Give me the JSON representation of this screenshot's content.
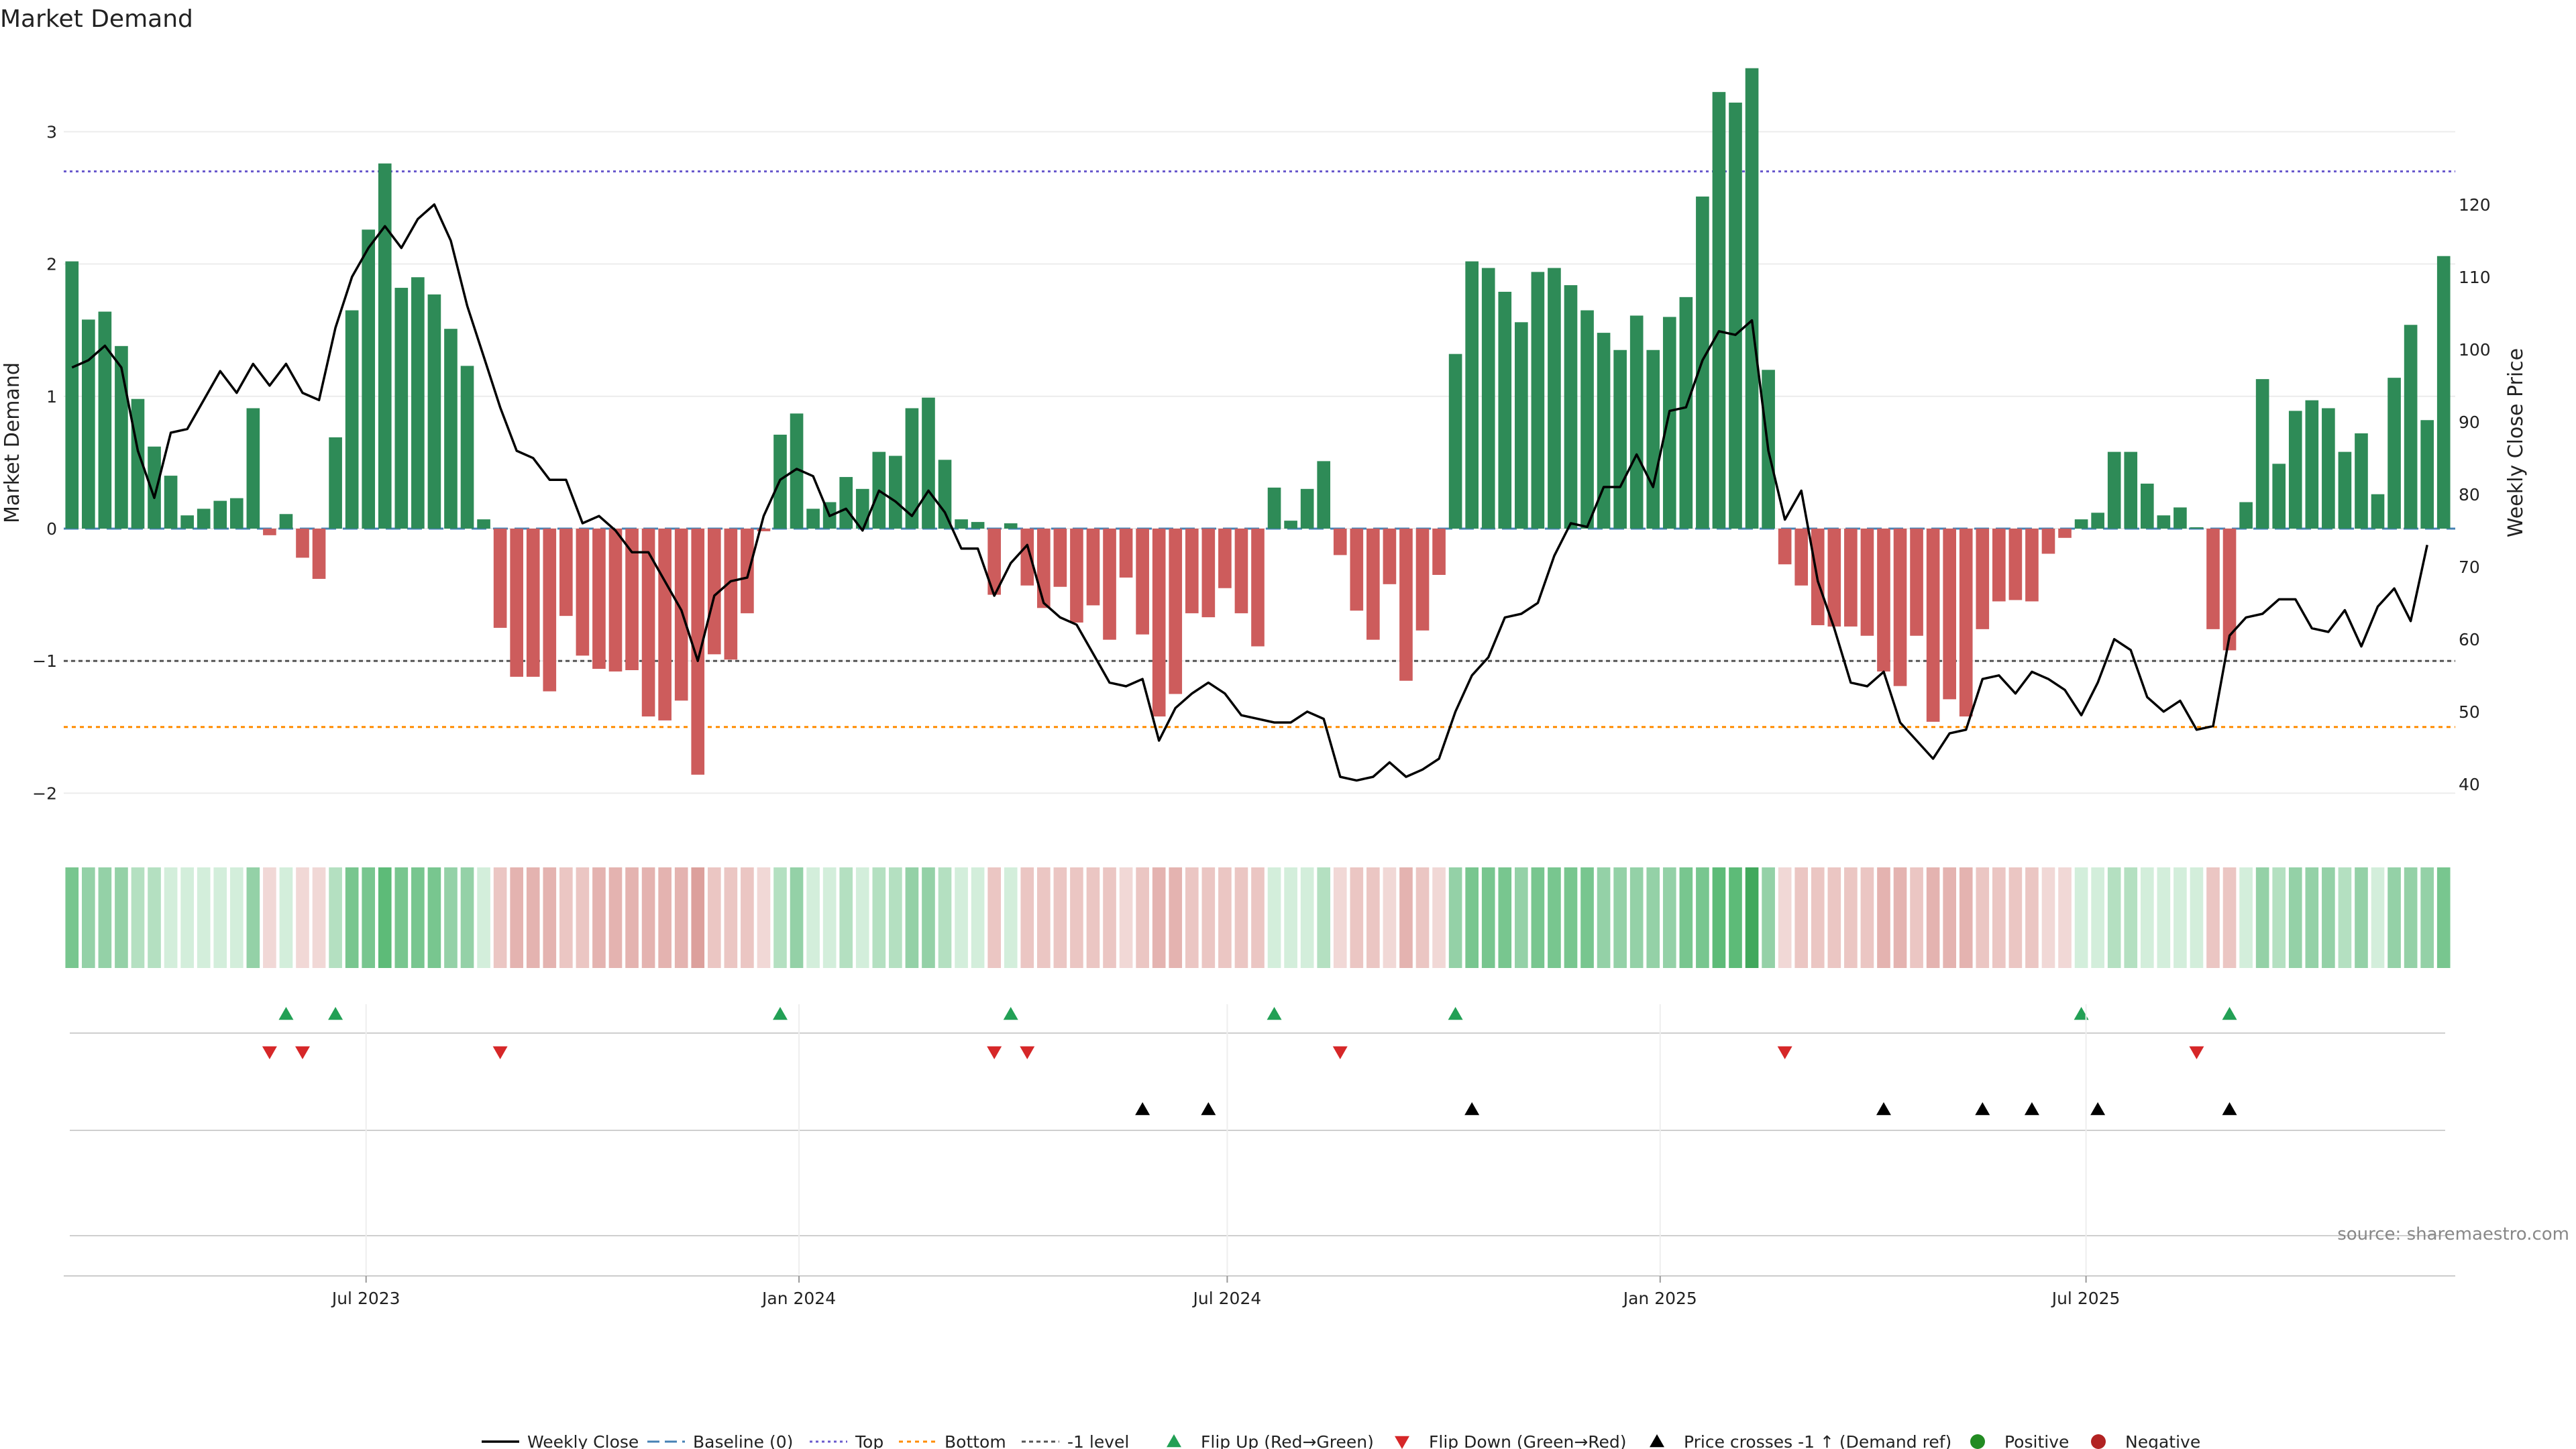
{
  "colors": {
    "positive": "#2e8b57",
    "negative": "#cd5c5c",
    "price_line": "#000000",
    "top_line": "#6a5acd",
    "bottom_line": "#ff8c00",
    "minus1_line": "#555555",
    "baseline": "#4682b4",
    "flip_up": "#22a055",
    "flip_down": "#d62728",
    "cross": "#000000",
    "positive_dot": "#228b22",
    "negative_dot": "#b22222"
  },
  "chart_data": {
    "type": "bar",
    "title": "Market Demand",
    "ylabel": "Market Demand",
    "y2label": "Weekly Close Price",
    "ylim": [
      -2.15,
      3.6
    ],
    "y2lim": [
      36,
      141
    ],
    "yticks": [
      -2,
      -1,
      0,
      1,
      2,
      3
    ],
    "y2ticks": [
      40,
      50,
      60,
      70,
      80,
      90,
      100,
      110,
      120
    ],
    "ytick_labels": [
      "−2",
      "−1",
      "0",
      "1",
      "2",
      "3"
    ],
    "y2tick_labels": [
      "40",
      "50",
      "60",
      "70",
      "80",
      "90",
      "100",
      "110",
      "120"
    ],
    "x_start": "2023-02-26",
    "bar_interval_days": 7,
    "xticks": [
      {
        "label": "Jul 2023",
        "date": "2023-07-01"
      },
      {
        "label": "Jan 2024",
        "date": "2024-01-01"
      },
      {
        "label": "Jul 2024",
        "date": "2024-07-01"
      },
      {
        "label": "Jan 2025",
        "date": "2025-01-01"
      },
      {
        "label": "Jul 2025",
        "date": "2025-07-01"
      }
    ],
    "levels": {
      "top": 2.7,
      "bottom": -1.5,
      "minus_one": -1.0,
      "baseline": 0
    },
    "demand": [
      2.02,
      1.58,
      1.64,
      1.38,
      0.98,
      0.62,
      0.4,
      0.1,
      0.15,
      0.21,
      0.23,
      0.91,
      -0.05,
      0.11,
      -0.22,
      -0.38,
      0.69,
      1.65,
      2.26,
      2.76,
      1.82,
      1.9,
      1.77,
      1.51,
      1.23,
      0.07,
      -0.75,
      -1.12,
      -1.12,
      -1.23,
      -0.66,
      -0.96,
      -1.06,
      -1.08,
      -1.07,
      -1.42,
      -1.45,
      -1.3,
      -1.86,
      -0.95,
      -0.99,
      -0.64,
      -0.02,
      0.71,
      0.87,
      0.15,
      0.2,
      0.39,
      0.3,
      0.58,
      0.55,
      0.91,
      0.99,
      0.52,
      0.07,
      0.05,
      -0.5,
      0.04,
      -0.43,
      -0.6,
      -0.44,
      -0.71,
      -0.58,
      -0.84,
      -0.37,
      -0.8,
      -1.42,
      -1.25,
      -0.64,
      -0.67,
      -0.45,
      -0.64,
      -0.89,
      0.31,
      0.06,
      0.3,
      0.51,
      -0.2,
      -0.62,
      -0.84,
      -0.42,
      -1.15,
      -0.77,
      -0.35,
      1.32,
      2.02,
      1.97,
      1.79,
      1.56,
      1.94,
      1.97,
      1.84,
      1.65,
      1.48,
      1.35,
      1.61,
      1.35,
      1.6,
      1.75,
      2.51,
      3.3,
      3.22,
      3.48,
      1.2,
      -0.27,
      -0.43,
      -0.73,
      -0.74,
      -0.74,
      -0.81,
      -1.08,
      -1.19,
      -0.81,
      -1.46,
      -1.29,
      -1.42,
      -0.76,
      -0.55,
      -0.54,
      -0.55,
      -0.19,
      -0.07,
      0.07,
      0.12,
      0.58,
      0.58,
      0.34,
      0.1,
      0.16,
      0.01,
      -0.76,
      -0.92,
      0.2,
      1.13,
      0.49,
      0.89,
      0.97,
      0.91,
      0.58,
      0.72,
      0.26,
      1.14,
      1.54,
      0.82,
      2.06
    ],
    "close": [
      97.5,
      98.5,
      100.5,
      97.5,
      86,
      79.5,
      88.5,
      89,
      93,
      97,
      94,
      98,
      95,
      98,
      94,
      93,
      103,
      110,
      114,
      117,
      114,
      118,
      120,
      115,
      106,
      99,
      92,
      86,
      85,
      82,
      82,
      76,
      77,
      75,
      72,
      72,
      68,
      64,
      57,
      66,
      68,
      68.5,
      77,
      82,
      83.5,
      82.5,
      77,
      78,
      75,
      80.5,
      79,
      77,
      80.5,
      77.5,
      72.5,
      72.5,
      66,
      70.5,
      73,
      65,
      63,
      62,
      58,
      54,
      53.5,
      54.5,
      46,
      50.5,
      52.5,
      54,
      52.5,
      49.5,
      49,
      48.5,
      48.5,
      50,
      49,
      41,
      40.5,
      41,
      43,
      41,
      42,
      43.5,
      50,
      55,
      57.5,
      63,
      63.5,
      65,
      71.5,
      76,
      75.5,
      81,
      81,
      85.5,
      81,
      91.5,
      92,
      98.5,
      102.5,
      102,
      104,
      86,
      76.5,
      80.5,
      68,
      61.5,
      54,
      53.5,
      55.5,
      48.5,
      46,
      43.5,
      47,
      47.5,
      54.5,
      55,
      52.5,
      55.5,
      54.5,
      53,
      49.5,
      54,
      60,
      58.5,
      52,
      50,
      51.5,
      47.5,
      48,
      60.5,
      63,
      63.5,
      65.5,
      65.5,
      61.5,
      61,
      64,
      59,
      64.5,
      67,
      62.5,
      73
    ],
    "strength_bands": [
      4,
      3,
      3,
      3,
      2,
      2,
      1,
      1,
      1,
      1,
      1,
      3,
      -1,
      1,
      -1,
      -1,
      2,
      4,
      4,
      5,
      4,
      4,
      4,
      3,
      3,
      1,
      -2,
      -3,
      -3,
      -3,
      -2,
      -2,
      -3,
      -3,
      -3,
      -3,
      -3,
      -3,
      -4,
      -2,
      -2,
      -2,
      -1,
      2,
      3,
      1,
      1,
      2,
      1,
      2,
      2,
      3,
      3,
      2,
      1,
      1,
      -2,
      1,
      -2,
      -2,
      -2,
      -2,
      -2,
      -2,
      -1,
      -2,
      -3,
      -3,
      -2,
      -2,
      -2,
      -2,
      -2,
      1,
      1,
      1,
      2,
      -1,
      -2,
      -2,
      -1,
      -3,
      -2,
      -1,
      3,
      4,
      4,
      4,
      3,
      4,
      4,
      4,
      4,
      3,
      3,
      3,
      3,
      3,
      4,
      4,
      5,
      5,
      6,
      3,
      -1,
      -2,
      -2,
      -2,
      -2,
      -2,
      -3,
      -3,
      -2,
      -3,
      -3,
      -3,
      -2,
      -2,
      -2,
      -2,
      -1,
      -1,
      1,
      1,
      2,
      2,
      1,
      1,
      1,
      1,
      -2,
      -2,
      1,
      3,
      2,
      3,
      3,
      3,
      2,
      3,
      1,
      3,
      3,
      3,
      4
    ],
    "flip_up_idx": [
      13,
      16,
      43,
      57,
      73,
      84,
      122,
      131
    ],
    "flip_down_idx": [
      12,
      14,
      26,
      56,
      58,
      77,
      104,
      129
    ],
    "price_cross_idx": [
      65,
      69,
      85,
      110,
      116,
      119,
      123,
      131
    ],
    "legend": [
      "Weekly Close",
      "Baseline (0)",
      "Top",
      "Bottom",
      "-1 level",
      "Flip Up (Red→Green)",
      "Flip Down (Green→Red)",
      "Price crosses -1 ↑ (Demand ref)",
      "Positive",
      "Negative"
    ],
    "source": "source: sharemaestro.com"
  }
}
